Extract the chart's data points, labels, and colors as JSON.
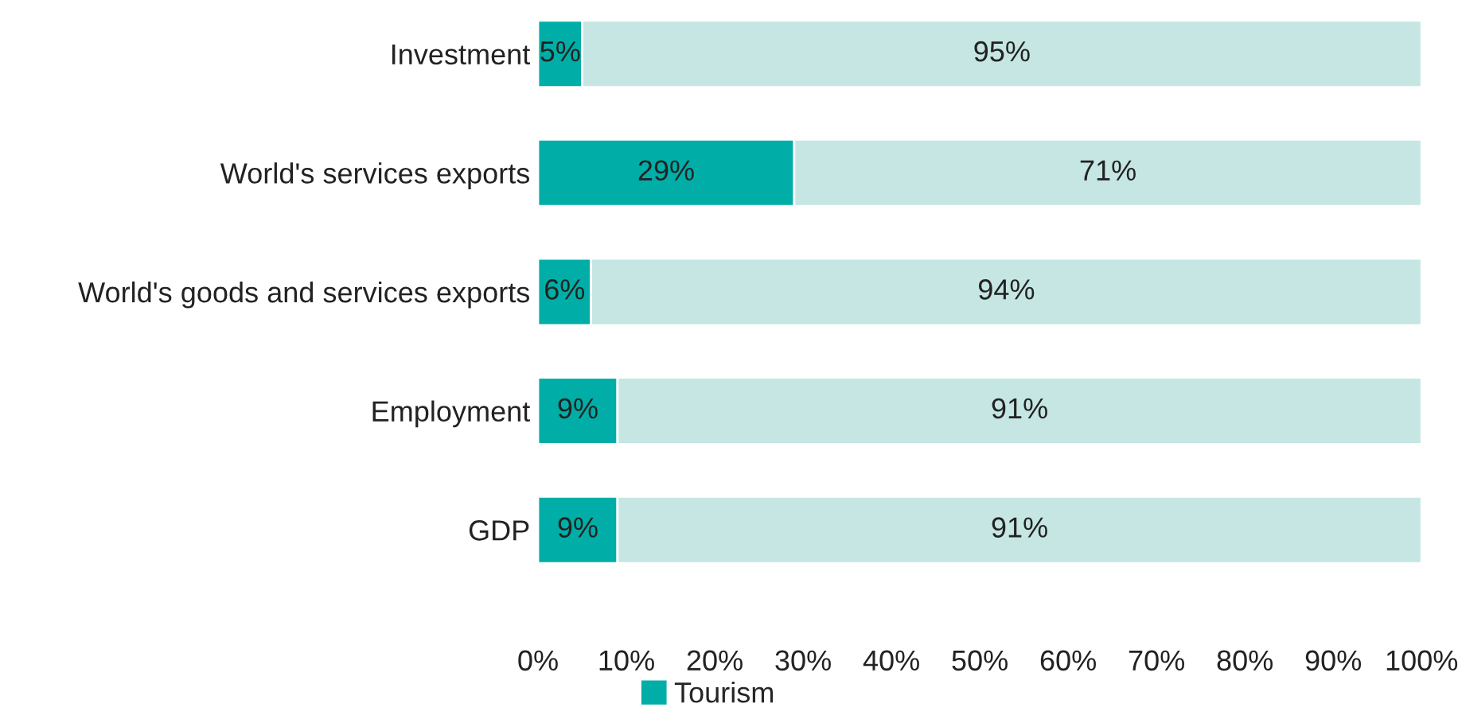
{
  "chart_data": {
    "type": "bar",
    "orientation": "horizontal",
    "stacked": true,
    "categories": [
      "Investment",
      "World's services exports",
      "World's goods and services exports",
      "Employment",
      "GDP"
    ],
    "series": [
      {
        "name": "Tourism",
        "color": "#00aea7",
        "values": [
          5,
          29,
          6,
          9,
          9
        ],
        "value_labels": [
          "5%",
          "29%",
          "6%",
          "9%",
          "9%"
        ]
      },
      {
        "color": "#c5e6e3",
        "values": [
          95,
          71,
          94,
          91,
          91
        ],
        "value_labels": [
          "95%",
          "71%",
          "94%",
          "91%",
          "91%"
        ]
      }
    ],
    "xlim": [
      0,
      100
    ],
    "xticks": [
      {
        "value": 0,
        "label": "0%"
      },
      {
        "value": 10,
        "label": "10%"
      },
      {
        "value": 20,
        "label": "20%"
      },
      {
        "value": 30,
        "label": "30%"
      },
      {
        "value": 40,
        "label": "40%"
      },
      {
        "value": 50,
        "label": "50%"
      },
      {
        "value": 60,
        "label": "60%"
      },
      {
        "value": 70,
        "label": "70%"
      },
      {
        "value": 80,
        "label": "80%"
      },
      {
        "value": 90,
        "label": "90%"
      },
      {
        "value": 100,
        "label": "100%"
      }
    ],
    "grid": false,
    "legend": "bottom"
  }
}
